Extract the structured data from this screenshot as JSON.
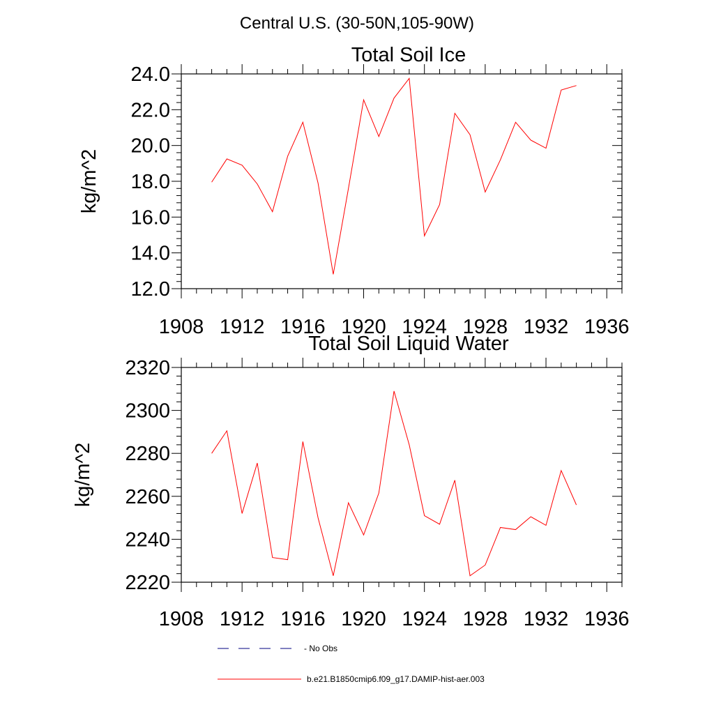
{
  "suptitle": "Central U.S. (30-50N,105-90W)",
  "colors": {
    "model_line": "#ff0000",
    "obs_line": "#000080",
    "axis": "#000000"
  },
  "legend": [
    {
      "label": "No Obs",
      "style": "dashed",
      "color": "#000080"
    },
    {
      "label": "b.e21.B1850cmip6.f09_g17.DAMIP-hist-aer.003",
      "style": "solid",
      "color": "#ff0000"
    }
  ],
  "chart_data": [
    {
      "type": "line",
      "title": "Total Soil Ice",
      "xlabel": "",
      "ylabel": "kg/m^2",
      "xlim": [
        1908,
        1937
      ],
      "ylim": [
        12,
        24
      ],
      "xticks": [
        1908,
        1912,
        1916,
        1920,
        1924,
        1928,
        1932,
        1936
      ],
      "yticks": [
        12,
        14,
        16,
        18,
        20,
        22,
        24
      ],
      "ytick_labels": [
        "12.0",
        "14.0",
        "16.0",
        "18.0",
        "20.0",
        "22.0",
        "24.0"
      ],
      "grid": false,
      "x": [
        1910,
        1911,
        1912,
        1913,
        1914,
        1915,
        1916,
        1917,
        1918,
        1919,
        1920,
        1921,
        1922,
        1923,
        1924,
        1925,
        1926,
        1927,
        1928,
        1929,
        1930,
        1931,
        1932,
        1933,
        1934
      ],
      "series": [
        {
          "values": [
            17.95,
            19.25,
            18.9,
            17.85,
            16.3,
            19.4,
            21.3,
            17.9,
            12.8,
            17.6,
            22.55,
            20.5,
            22.65,
            23.75,
            14.95,
            16.7,
            21.8,
            20.6,
            17.4,
            19.2,
            21.3,
            20.3,
            19.85,
            23.1,
            23.35
          ]
        }
      ]
    },
    {
      "type": "line",
      "title": "Total Soil Liquid Water",
      "xlabel": "",
      "ylabel": "kg/m^2",
      "xlim": [
        1908,
        1937
      ],
      "ylim": [
        2220,
        2320
      ],
      "xticks": [
        1908,
        1912,
        1916,
        1920,
        1924,
        1928,
        1932,
        1936
      ],
      "yticks": [
        2220,
        2240,
        2260,
        2280,
        2300,
        2320
      ],
      "ytick_labels": [
        "2220",
        "2240",
        "2260",
        "2280",
        "2300",
        "2320"
      ],
      "grid": false,
      "x": [
        1910,
        1911,
        1912,
        1913,
        1914,
        1915,
        1916,
        1917,
        1918,
        1919,
        1920,
        1921,
        1922,
        1923,
        1924,
        1925,
        1926,
        1927,
        1928,
        1929,
        1930,
        1931,
        1932,
        1933,
        1934
      ],
      "series": [
        {
          "values": [
            2280,
            2290.5,
            2252,
            2275.5,
            2231.5,
            2230.5,
            2285.5,
            2250,
            2223,
            2257,
            2242,
            2261.5,
            2309,
            2284,
            2251,
            2247,
            2267.5,
            2223,
            2228,
            2245.5,
            2244.5,
            2250.5,
            2246.5,
            2272,
            2256
          ]
        }
      ]
    }
  ]
}
